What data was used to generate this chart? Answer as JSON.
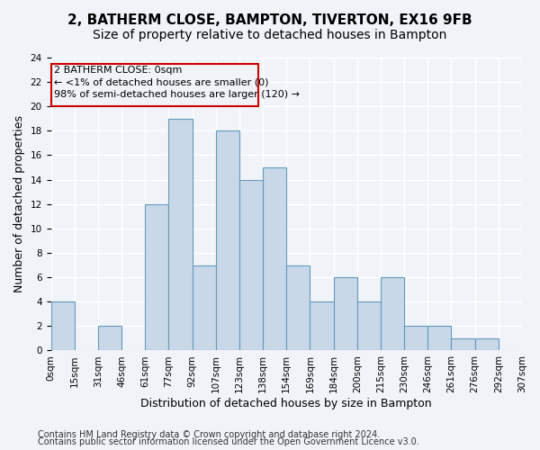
{
  "title": "2, BATHERM CLOSE, BAMPTON, TIVERTON, EX16 9FB",
  "subtitle": "Size of property relative to detached houses in Bampton",
  "xlabel": "Distribution of detached houses by size in Bampton",
  "ylabel": "Number of detached properties",
  "footnote1": "Contains HM Land Registry data © Crown copyright and database right 2024.",
  "footnote2": "Contains public sector information licensed under the Open Government Licence v3.0.",
  "bin_labels": [
    "0sqm",
    "15sqm",
    "31sqm",
    "46sqm",
    "61sqm",
    "77sqm",
    "92sqm",
    "107sqm",
    "123sqm",
    "138sqm",
    "154sqm",
    "169sqm",
    "184sqm",
    "200sqm",
    "215sqm",
    "230sqm",
    "246sqm",
    "261sqm",
    "276sqm",
    "292sqm",
    "307sqm"
  ],
  "bar_heights": [
    4,
    0,
    2,
    0,
    12,
    19,
    7,
    18,
    14,
    15,
    7,
    4,
    6,
    4,
    6,
    2,
    2,
    1,
    1,
    0
  ],
  "bar_color": "#c8d8e8",
  "bar_edge_color": "#6699bb",
  "annotation_box_color": "#cc0000",
  "annotation_line1": "2 BATHERM CLOSE: 0sqm",
  "annotation_line2": "← <1% of detached houses are smaller (0)",
  "annotation_line3": "98% of semi-detached houses are larger (120) →",
  "ylim": [
    0,
    24
  ],
  "ytick_step": 2,
  "background_color": "#f0f4f8",
  "grid_color": "#ffffff",
  "title_fontsize": 11,
  "subtitle_fontsize": 10,
  "xlabel_fontsize": 9,
  "ylabel_fontsize": 9,
  "tick_fontsize": 7.5,
  "annotation_fontsize": 8,
  "footnote_fontsize": 7
}
